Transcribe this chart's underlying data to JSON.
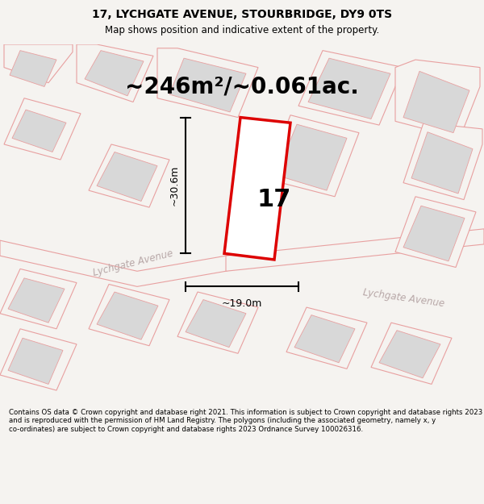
{
  "title": "17, LYCHGATE AVENUE, STOURBRIDGE, DY9 0TS",
  "subtitle": "Map shows position and indicative extent of the property.",
  "area_text": "~246m²/~0.061ac.",
  "width_label": "~19.0m",
  "height_label": "~30.6m",
  "property_number": "17",
  "street_label1": "Lychgate Avenue",
  "street_label2": "Lychgate Avenue",
  "footer": "Contains OS data © Crown copyright and database right 2021. This information is subject to Crown copyright and database rights 2023 and is reproduced with the permission of HM Land Registry. The polygons (including the associated geometry, namely x, y co-ordinates) are subject to Crown copyright and database rights 2023 Ordnance Survey 100026316.",
  "bg_color": "#f5f3f0",
  "map_bg": "#f5f3f0",
  "polygon_fill": "#ffffff",
  "polygon_edge_color": "#e8a0a0",
  "main_polygon_color": "#dd0000",
  "road_color": "#e8a0a0",
  "building_fill": "#d8d8d8",
  "building_edge": "#d0d0d0",
  "plot_fill": "#f5f3f0",
  "title_fontsize": 10,
  "subtitle_fontsize": 8.5,
  "area_fontsize": 20,
  "label_fontsize": 9,
  "footer_fontsize": 6.2
}
